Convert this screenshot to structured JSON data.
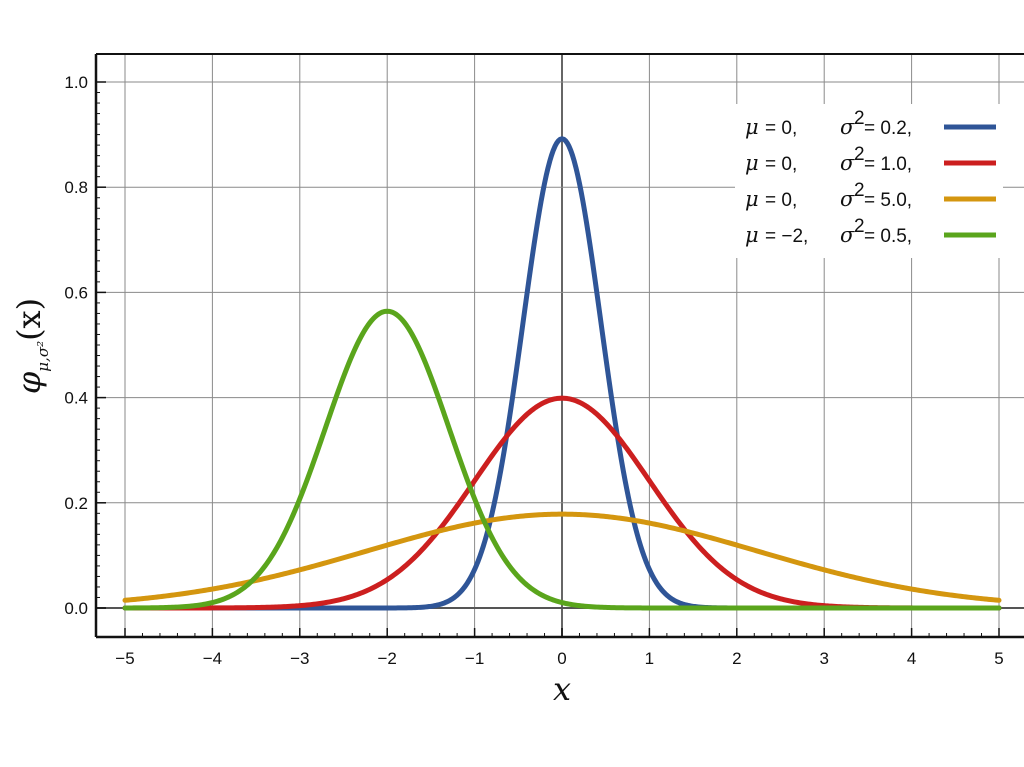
{
  "chart_data": {
    "type": "line",
    "xlabel": "x",
    "ylabel": "φ",
    "ylabel_subscript": "μ,σ²",
    "ylabel_suffix": "(x)",
    "xlim": [
      -5,
      5
    ],
    "ylim": [
      0,
      1.05
    ],
    "xticks": [
      -5,
      -4,
      -3,
      -2,
      -1,
      0,
      1,
      2,
      3,
      4,
      5
    ],
    "xtick_labels": [
      "−5",
      "−4",
      "−3",
      "−2",
      "−1",
      "0",
      "1",
      "2",
      "3",
      "4",
      "5"
    ],
    "yticks": [
      0.0,
      0.2,
      0.4,
      0.6,
      0.8,
      1.0
    ],
    "ytick_labels": [
      "0.0",
      "0.2",
      "0.4",
      "0.6",
      "0.8",
      "1.0"
    ],
    "grid": true,
    "legend_position": "top-right",
    "series": [
      {
        "mu_text": "μ",
        "mu_value": "= 0,",
        "sigma_text": "σ",
        "sigma_value": "= 0.2,",
        "color": "#2f5597",
        "mu": 0,
        "variance": 0.2,
        "peak": 0.892
      },
      {
        "mu_text": "μ",
        "mu_value": "= 0,",
        "sigma_text": "σ",
        "sigma_value": "= 1.0,",
        "color": "#cc1f1f",
        "mu": 0,
        "variance": 1.0,
        "peak": 0.399
      },
      {
        "mu_text": "μ",
        "mu_value": "= 0,",
        "sigma_text": "σ",
        "sigma_value": "= 5.0,",
        "color": "#d4960f",
        "mu": 0,
        "variance": 5.0,
        "peak": 0.178
      },
      {
        "mu_text": "μ",
        "mu_value": "= −2,",
        "sigma_text": "σ",
        "sigma_value": "= 0.5,",
        "color": "#5aa51c",
        "mu": -2,
        "variance": 0.5,
        "peak": 0.564
      }
    ]
  }
}
